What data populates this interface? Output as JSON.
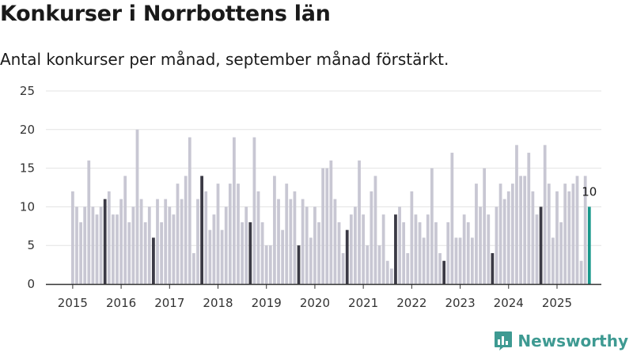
{
  "chart_data": {
    "type": "bar",
    "title": "Konkurser i Norrbottens län",
    "subtitle": "Antal konkurser per månad, september månad förstärkt.",
    "xlabel": "",
    "ylabel": "",
    "ylim": [
      0,
      25
    ],
    "yticks": [
      0,
      5,
      10,
      15,
      20,
      25
    ],
    "grid": true,
    "x_ticks": [
      "2015",
      "2016",
      "2017",
      "2018",
      "2019",
      "2020",
      "2021",
      "2022",
      "2023",
      "2024",
      "2025"
    ],
    "start_month": "2015-01",
    "series": [
      {
        "name": "Antal konkurser",
        "values": [
          12,
          10,
          8,
          10,
          16,
          10,
          9,
          10,
          11,
          12,
          9,
          9,
          11,
          14,
          8,
          10,
          20,
          11,
          8,
          10,
          6,
          11,
          8,
          11,
          10,
          9,
          13,
          11,
          14,
          19,
          4,
          11,
          14,
          12,
          7,
          9,
          13,
          7,
          10,
          13,
          19,
          13,
          8,
          10,
          8,
          19,
          12,
          8,
          5,
          5,
          14,
          11,
          7,
          13,
          11,
          12,
          5,
          11,
          10,
          6,
          10,
          8,
          15,
          15,
          16,
          11,
          8,
          4,
          7,
          9,
          10,
          16,
          9,
          5,
          12,
          14,
          5,
          9,
          3,
          2,
          9,
          10,
          8,
          4,
          12,
          9,
          8,
          6,
          9,
          15,
          8,
          4,
          3,
          8,
          17,
          6,
          6,
          9,
          8,
          6,
          13,
          10,
          15,
          9,
          4,
          10,
          13,
          11,
          12,
          13,
          18,
          14,
          14,
          17,
          12,
          9,
          10,
          18,
          13,
          6,
          12,
          8,
          13,
          12,
          13,
          14,
          3,
          14,
          10
        ]
      }
    ],
    "highlight": "september",
    "last_label": "10",
    "colors": {
      "bar": "#c8c7d3",
      "highlight": "#3b3a45",
      "last": "#18988b",
      "grid": "#e3e3e3",
      "axis": "#333333"
    }
  },
  "brand": {
    "name": "Newsworthy",
    "color": "#3e9a92",
    "icon": "newsworthy-logo-icon"
  }
}
